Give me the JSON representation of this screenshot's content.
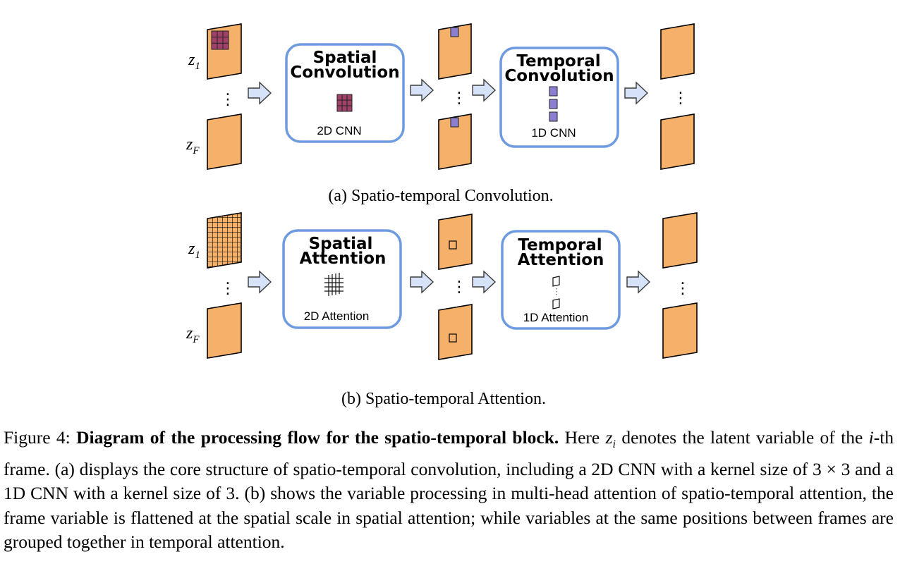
{
  "diagram": {
    "panel_a": {
      "frame_top_label": {
        "var": "z",
        "sub": "1"
      },
      "frame_bottom_label": {
        "var": "z",
        "sub": "F"
      },
      "spatial_block": {
        "title_line1": "Spatial",
        "title_line2": "Convolution",
        "label": "2D CNN"
      },
      "temporal_block": {
        "title_line1": "Temporal",
        "title_line2": "Convolution",
        "label": "1D CNN"
      },
      "caption": "(a) Spatio-temporal Convolution."
    },
    "panel_b": {
      "frame_top_label": {
        "var": "z",
        "sub": "1"
      },
      "frame_bottom_label": {
        "var": "z",
        "sub": "F"
      },
      "spatial_block": {
        "title_line1": "Spatial",
        "title_line2": "Attention",
        "label": "2D Attention"
      },
      "temporal_block": {
        "title_line1": "Temporal",
        "title_line2": "Attention",
        "label": "1D Attention"
      },
      "caption": "(b) Spatio-temporal Attention."
    },
    "vertical_ellipsis": "⋮",
    "colors": {
      "frame_fill": "#f5b06a",
      "block_border": "#6e9be0",
      "arrow_fill": "#d6e2f7",
      "kernel_2d": "#a0416a",
      "kernel_1d": "#8a7fd0"
    }
  },
  "figure_caption": {
    "label": "Figure 4:",
    "lead": "Diagram of the processing flow for the spatio-temporal block.",
    "t1": "Here",
    "var_z": "z",
    "var_z_sub": "i",
    "t2": "denotes the latent variable of the",
    "var_i": "i",
    "t3": "-th frame. (a) displays the core structure of spatio-temporal convolution, including a 2D CNN with a kernel size of 3 × 3 and a 1D CNN with a kernel size of 3. (b) shows the variable processing in multi-head attention of spatio-temporal attention, the frame variable is flattened at the spatial scale in spatial attention; while variables at the same positions between frames are grouped together in temporal attention."
  }
}
